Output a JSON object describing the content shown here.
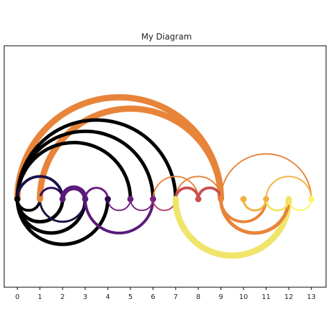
{
  "figure": {
    "title": "My Diagram"
  },
  "chart_data": {
    "type": "arc-diagram",
    "title": "My Diagram",
    "nodes": [
      {
        "id": 0,
        "color": "#000000"
      },
      {
        "id": 1,
        "color": "#e8843a"
      },
      {
        "id": 2,
        "color": "#5a1a7a"
      },
      {
        "id": 3,
        "color": "#5a1a7a"
      },
      {
        "id": 4,
        "color": "#2a0c55"
      },
      {
        "id": 5,
        "color": "#6a1d80"
      },
      {
        "id": 6,
        "color": "#7a2078"
      },
      {
        "id": 7,
        "color": "#efe56a"
      },
      {
        "id": 8,
        "color": "#c9504f"
      },
      {
        "id": 9,
        "color": "#e8843a"
      },
      {
        "id": 10,
        "color": "#f2b13f"
      },
      {
        "id": 11,
        "color": "#f2b13f"
      },
      {
        "id": 12,
        "color": "#efe56a"
      },
      {
        "id": 13,
        "color": "#fcf46a"
      }
    ],
    "x_ticks": [
      "0",
      "1",
      "2",
      "3",
      "4",
      "5",
      "6",
      "7",
      "8",
      "9",
      "10",
      "11",
      "12",
      "13"
    ],
    "edges": [
      {
        "a": 0,
        "b": 9,
        "side": "upper",
        "color": "#e8843a",
        "weight": 9
      },
      {
        "a": 1,
        "b": 9,
        "side": "upper",
        "color": "#e8843a",
        "weight": 9
      },
      {
        "a": 0,
        "b": 7,
        "side": "upper",
        "color": "#000000",
        "weight": 5
      },
      {
        "a": 0,
        "b": 6,
        "side": "upper",
        "color": "#000000",
        "weight": 5
      },
      {
        "a": 0,
        "b": 5,
        "side": "upper",
        "color": "#000000",
        "weight": 5
      },
      {
        "a": 0,
        "b": 2,
        "side": "upper",
        "color": "#1c1048",
        "weight": 4
      },
      {
        "a": 1,
        "b": 2,
        "side": "upper",
        "color": "#2a0c55",
        "weight": 3
      },
      {
        "a": 2,
        "b": 3,
        "side": "upper",
        "color": "#5a1a7a",
        "weight": 7
      },
      {
        "a": 3,
        "b": 4,
        "side": "upper",
        "color": "#6a1d80",
        "weight": 3
      },
      {
        "a": 7,
        "b": 9,
        "side": "upper",
        "color": "#e8843a",
        "weight": 2
      },
      {
        "a": 6,
        "b": 8,
        "side": "upper",
        "color": "#e8843a",
        "weight": 2
      },
      {
        "a": 7,
        "b": 8,
        "side": "upper",
        "color": "#c9504f",
        "weight": 4
      },
      {
        "a": 8,
        "b": 9,
        "side": "upper",
        "color": "#c9504f",
        "weight": 4
      },
      {
        "a": 9,
        "b": 13,
        "side": "upper",
        "color": "#e8843a",
        "weight": 2
      },
      {
        "a": 11,
        "b": 13,
        "side": "upper",
        "color": "#f2b13f",
        "weight": 2
      },
      {
        "a": 0,
        "b": 4,
        "side": "lower",
        "color": "#000000",
        "weight": 5
      },
      {
        "a": 0,
        "b": 3,
        "side": "lower",
        "color": "#000000",
        "weight": 5
      },
      {
        "a": 0,
        "b": 2,
        "side": "lower",
        "color": "#000000",
        "weight": 5
      },
      {
        "a": 0,
        "b": 1,
        "side": "lower",
        "color": "#000000",
        "weight": 4
      },
      {
        "a": 1,
        "b": 3,
        "side": "lower",
        "color": "#1c1048",
        "weight": 3
      },
      {
        "a": 3,
        "b": 6,
        "side": "lower",
        "color": "#5a1a7a",
        "weight": 4
      },
      {
        "a": 4,
        "b": 5,
        "side": "lower",
        "color": "#6a1d80",
        "weight": 2
      },
      {
        "a": 5,
        "b": 6,
        "side": "lower",
        "color": "#7a2078",
        "weight": 2
      },
      {
        "a": 6,
        "b": 7,
        "side": "lower",
        "color": "#b8476a",
        "weight": 2
      },
      {
        "a": 7,
        "b": 12,
        "side": "lower",
        "color": "#efe56a",
        "weight": 9
      },
      {
        "a": 9,
        "b": 12,
        "side": "lower",
        "color": "#e8843a",
        "weight": 5
      },
      {
        "a": 9,
        "b": 11,
        "side": "lower",
        "color": "#e8843a",
        "weight": 4
      },
      {
        "a": 10,
        "b": 11,
        "side": "lower",
        "color": "#f2b13f",
        "weight": 3
      },
      {
        "a": 11,
        "b": 12,
        "side": "lower",
        "color": "#efe56a",
        "weight": 3
      },
      {
        "a": 12,
        "b": 13,
        "side": "lower",
        "color": "#fcf46a",
        "weight": 2
      }
    ],
    "grid": false,
    "legend": "none"
  }
}
